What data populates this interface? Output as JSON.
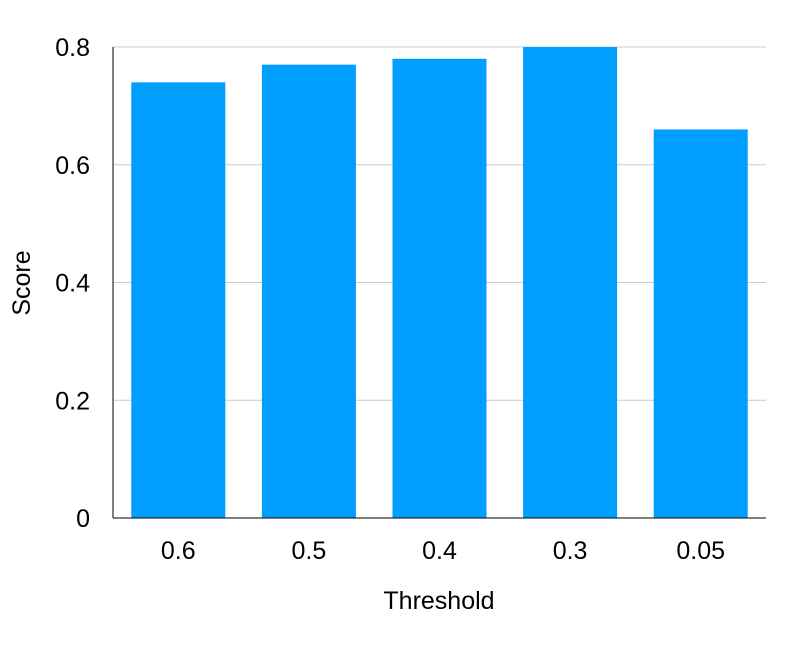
{
  "chart_data": {
    "type": "bar",
    "title": "",
    "xlabel": "Threshold",
    "ylabel": "Score",
    "categories": [
      "0.6",
      "0.5",
      "0.4",
      "0.3",
      "0.05"
    ],
    "values": [
      0.74,
      0.77,
      0.78,
      0.8,
      0.66
    ],
    "ylim": [
      0,
      0.8
    ],
    "yticks": [
      0,
      0.2,
      0.4,
      0.6,
      0.8
    ],
    "ytick_labels": [
      "0",
      "0.2",
      "0.4",
      "0.6",
      "0.8"
    ],
    "grid": "horizontal",
    "bar_color": "#009fff",
    "grid_color": "#cccccc",
    "axis_color": "#000000"
  }
}
